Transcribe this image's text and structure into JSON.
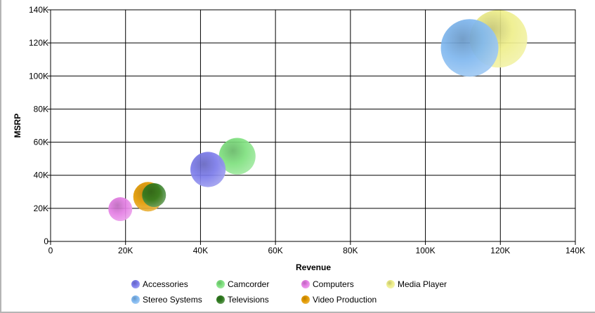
{
  "chart_data": {
    "type": "scatter",
    "subtype": "bubble",
    "title": "",
    "xlabel": "Revenue",
    "ylabel": "MSRP",
    "xlim": [
      0,
      140000
    ],
    "ylim": [
      0,
      140000
    ],
    "xticks": [
      {
        "value": 0,
        "label": "0"
      },
      {
        "value": 20000,
        "label": "20K"
      },
      {
        "value": 40000,
        "label": "40K"
      },
      {
        "value": 60000,
        "label": "60K"
      },
      {
        "value": 80000,
        "label": "80K"
      },
      {
        "value": 100000,
        "label": "100K"
      },
      {
        "value": 120000,
        "label": "120K"
      },
      {
        "value": 140000,
        "label": "140K"
      }
    ],
    "yticks": [
      {
        "value": 0,
        "label": "0"
      },
      {
        "value": 20000,
        "label": "20K"
      },
      {
        "value": 40000,
        "label": "40K"
      },
      {
        "value": 60000,
        "label": "60K"
      },
      {
        "value": 80000,
        "label": "80K"
      },
      {
        "value": 100000,
        "label": "100K"
      },
      {
        "value": 120000,
        "label": "120K"
      },
      {
        "value": 140000,
        "label": "140K"
      }
    ],
    "grid": true,
    "legend_position": "bottom",
    "series": [
      {
        "name": "Accessories",
        "color": "#7b7bea",
        "x": 42000,
        "y": 43500,
        "size": 0.38
      },
      {
        "name": "Camcorder",
        "color": "#7ee07e",
        "x": 49800,
        "y": 51500,
        "size": 0.4
      },
      {
        "name": "Computers",
        "color": "#e47ee4",
        "x": 18600,
        "y": 19500,
        "size": 0.3
      },
      {
        "name": "Media Player",
        "color": "#eeee8a",
        "x": 119500,
        "y": 122500,
        "size": 1.0
      },
      {
        "name": "Stereo Systems",
        "color": "#7fb7ef",
        "x": 111800,
        "y": 117000,
        "size": 1.0
      },
      {
        "name": "Televisions",
        "color": "#2f7a1f",
        "x": 27600,
        "y": 28000,
        "size": 0.3
      },
      {
        "name": "Video Production",
        "color": "#e39a00",
        "x": 26000,
        "y": 27000,
        "size": 0.32
      }
    ]
  }
}
